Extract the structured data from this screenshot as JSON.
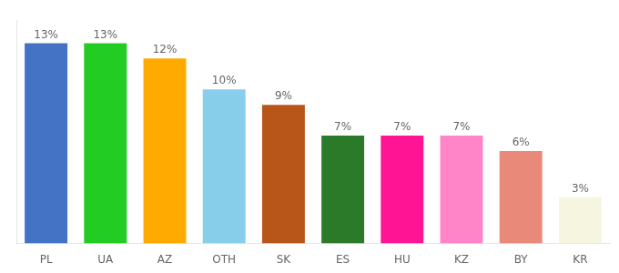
{
  "chart_data": {
    "type": "bar",
    "categories": [
      "PL",
      "UA",
      "AZ",
      "OTH",
      "SK",
      "ES",
      "HU",
      "KZ",
      "BY",
      "KR"
    ],
    "values": [
      13,
      13,
      12,
      10,
      9,
      7,
      7,
      7,
      6,
      3
    ],
    "value_labels": [
      "13%",
      "13%",
      "12%",
      "10%",
      "9%",
      "7%",
      "7%",
      "7%",
      "6%",
      "3%"
    ],
    "colors": [
      "#4472c4",
      "#22cc22",
      "#ffaa00",
      "#87ceeb",
      "#b8561a",
      "#2a7a2a",
      "#ff1493",
      "#ff85c8",
      "#e8897a",
      "#f5f5e0"
    ],
    "ylim": [
      0,
      14.5
    ],
    "data_labels": true,
    "tick_labels": "x",
    "grid": false
  }
}
